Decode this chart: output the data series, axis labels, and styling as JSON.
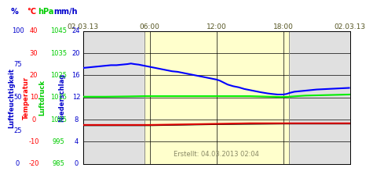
{
  "x_ticks": [
    0,
    6,
    12,
    18,
    24
  ],
  "x_tick_labels_top": [
    "02.03.13",
    "06:00",
    "12:00",
    "18:00",
    "02.03.13"
  ],
  "ylim": [
    0,
    24
  ],
  "y_ticks": [
    0,
    4,
    8,
    12,
    16,
    20,
    24
  ],
  "gray_bg": "#e0e0e0",
  "yellow_bg": "#ffffcc",
  "grid_color": "#000000",
  "footer_text": "Erstellt: 04.03.2013 02:04",
  "yellow_start": 5.5,
  "yellow_end": 18.5,
  "unit_labels": [
    {
      "text": "%",
      "color": "#0000cc",
      "fx": 0.02
    },
    {
      "text": "°C",
      "color": "#ff0000",
      "fx": 0.068
    },
    {
      "text": "hPa",
      "color": "#00cc00",
      "fx": 0.11
    },
    {
      "text": "mm/h",
      "color": "#0000cc",
      "fx": 0.165
    }
  ],
  "axis_name_labels": [
    {
      "text": "Luftfeuchtigkeit",
      "color": "#0000cc",
      "fx": 0.012
    },
    {
      "text": "Temperatur",
      "color": "#ff0000",
      "fx": 0.055
    },
    {
      "text": "Luftdruck",
      "color": "#00cc00",
      "fx": 0.1
    },
    {
      "text": "Niederschlag",
      "color": "#0000cc",
      "fx": 0.155
    }
  ],
  "left_tick_cols": [
    {
      "color": "#0000cc",
      "fx": 0.03,
      "values": [
        "0",
        "25",
        "50",
        "75",
        "100"
      ],
      "y_data": [
        0,
        6,
        12,
        18,
        24
      ]
    },
    {
      "color": "#ff0000",
      "fx": 0.075,
      "values": [
        "-20",
        "-10",
        "0",
        "10",
        "20",
        "30",
        "40"
      ],
      "y_data": [
        0,
        4,
        8,
        12,
        16,
        20,
        24
      ]
    },
    {
      "color": "#00cc00",
      "fx": 0.145,
      "values": [
        "985",
        "995",
        "1005",
        "1015",
        "1025",
        "1035",
        "1045"
      ],
      "y_data": [
        0,
        4,
        8,
        12,
        16,
        20,
        24
      ]
    },
    {
      "color": "#0000cc",
      "fx": 0.195,
      "values": [
        "0",
        "4",
        "8",
        "12",
        "16",
        "20",
        "24"
      ],
      "y_data": [
        0,
        4,
        8,
        12,
        16,
        20,
        24
      ]
    }
  ],
  "blue_line": {
    "x": [
      0,
      0.5,
      1,
      1.5,
      2,
      2.5,
      3,
      3.5,
      4,
      4.3,
      4.6,
      5,
      5.5,
      6,
      6.5,
      7,
      7.5,
      8,
      8.5,
      9,
      9.5,
      10,
      10.5,
      11,
      11.5,
      12,
      12.3,
      12.6,
      13,
      13.5,
      14,
      14.5,
      15,
      15.5,
      16,
      16.3,
      16.6,
      17,
      17.5,
      18,
      18.3,
      18.6,
      19,
      19.5,
      20,
      20.5,
      21,
      22,
      23,
      24
    ],
    "y": [
      17.3,
      17.4,
      17.5,
      17.6,
      17.7,
      17.8,
      17.8,
      17.9,
      18.0,
      18.1,
      18.0,
      17.9,
      17.7,
      17.5,
      17.3,
      17.1,
      16.9,
      16.7,
      16.6,
      16.4,
      16.2,
      16.0,
      15.8,
      15.6,
      15.4,
      15.2,
      15.0,
      14.7,
      14.3,
      14.0,
      13.8,
      13.5,
      13.3,
      13.1,
      12.9,
      12.8,
      12.7,
      12.6,
      12.5,
      12.5,
      12.6,
      12.8,
      13.0,
      13.1,
      13.2,
      13.3,
      13.4,
      13.5,
      13.6,
      13.7
    ],
    "color": "#0000ff",
    "linewidth": 1.5
  },
  "green_line": {
    "x": [
      0,
      2,
      4,
      5.5,
      7,
      9,
      11,
      13,
      15,
      17,
      17.8,
      18.5,
      20,
      22,
      24
    ],
    "y": [
      12.1,
      12.1,
      12.15,
      12.2,
      12.2,
      12.2,
      12.2,
      12.2,
      12.2,
      12.1,
      12.05,
      12.1,
      12.3,
      12.4,
      12.5
    ],
    "color": "#00ee00",
    "linewidth": 1.5
  },
  "red_line": {
    "x": [
      0,
      3,
      6,
      9,
      12,
      15,
      18,
      21,
      24
    ],
    "y": [
      7.0,
      7.0,
      7.0,
      7.1,
      7.2,
      7.3,
      7.3,
      7.3,
      7.3
    ],
    "color": "#dd0000",
    "linewidth": 1.5
  },
  "black_line": {
    "x": [
      0,
      6,
      12,
      18,
      24
    ],
    "y": [
      6.9,
      6.9,
      7.1,
      7.2,
      7.2
    ],
    "color": "#000000",
    "linewidth": 1.0
  }
}
